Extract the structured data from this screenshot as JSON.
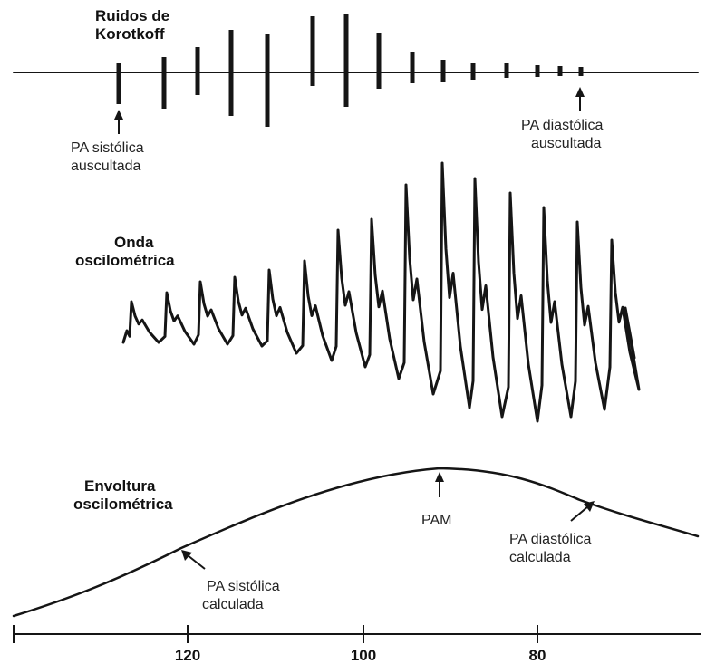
{
  "korotkoff": {
    "title_line1": "Ruidos de",
    "title_line2": "Korotkoff",
    "systolic_label_line1": "PA sistólica",
    "systolic_label_line2": "auscultada",
    "diastolic_label_line1": "PA diastólica",
    "diastolic_label_line2": "auscultada"
  },
  "oscillometric_wave": {
    "title_line1": "Onda",
    "title_line2": "oscilométrica"
  },
  "envelope": {
    "title_line1": "Envoltura",
    "title_line2": "oscilométrica",
    "pam_label": "PAM",
    "systolic_label_line1": "PA sistólica",
    "systolic_label_line2": "calculada",
    "diastolic_label_line1": "PA diastólica",
    "diastolic_label_line2": "calculada"
  },
  "axis": {
    "tick_labels": [
      "120",
      "100",
      "80"
    ]
  },
  "colors": {
    "ink": "#151515",
    "background": "#ffffff"
  }
}
